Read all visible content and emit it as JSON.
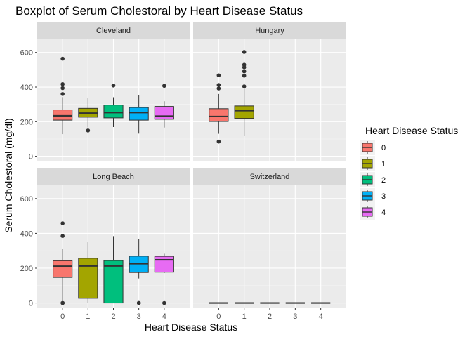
{
  "chart_data": {
    "type": "boxplot",
    "title": "Boxplot of Serum Cholestoral by Heart Disease Status",
    "xlabel": "Heart Disease Status",
    "ylabel": "Serum Cholestoral (mg/dl)",
    "categories": [
      "0",
      "1",
      "2",
      "3",
      "4"
    ],
    "ylim": [
      -30,
      680
    ],
    "yticks": [
      0,
      200,
      400,
      600
    ],
    "legend": {
      "title": "Heart Disease Status",
      "position": "right",
      "entries": [
        "0",
        "1",
        "2",
        "3",
        "4"
      ]
    },
    "colors": [
      "#F8766D",
      "#A3A500",
      "#00BF7D",
      "#00B0F6",
      "#E76BF3"
    ],
    "panels": [
      {
        "name": "Cleveland",
        "boxes": [
          {
            "category": "0",
            "lower": 128,
            "q1": 209,
            "median": 234,
            "q3": 268,
            "upper": 342,
            "outliers": [
              360,
              394,
              417,
              564
            ]
          },
          {
            "category": "1",
            "lower": 167,
            "q1": 226,
            "median": 249,
            "q3": 277,
            "upper": 335,
            "outliers": [
              149
            ]
          },
          {
            "category": "2",
            "lower": 169,
            "q1": 222,
            "median": 253,
            "q3": 296,
            "upper": 341,
            "outliers": [
              409
            ]
          },
          {
            "category": "3",
            "lower": 131,
            "q1": 209,
            "median": 253,
            "q3": 282,
            "upper": 353,
            "outliers": []
          },
          {
            "category": "4",
            "lower": 166,
            "q1": 214,
            "median": 232,
            "q3": 288,
            "upper": 318,
            "outliers": [
              407
            ]
          }
        ]
      },
      {
        "name": "Hungary",
        "boxes": [
          {
            "category": "0",
            "lower": 130,
            "q1": 201,
            "median": 230,
            "q3": 275,
            "upper": 360,
            "outliers": [
              85,
              392,
              412,
              468
            ]
          },
          {
            "category": "1",
            "lower": 117,
            "q1": 219,
            "median": 264,
            "q3": 291,
            "upper": 394,
            "outliers": [
              404,
              466,
              491,
              514,
              529,
              603
            ]
          }
        ]
      },
      {
        "name": "Long Beach",
        "boxes": [
          {
            "category": "0",
            "lower": 0,
            "q1": 147,
            "median": 211,
            "q3": 243,
            "upper": 309,
            "outliers": [
              0,
              0,
              0,
              385,
              458
            ]
          },
          {
            "category": "1",
            "lower": 0,
            "q1": 27,
            "median": 213,
            "q3": 257,
            "upper": 349,
            "outliers": []
          },
          {
            "category": "2",
            "lower": 0,
            "q1": 0,
            "median": 213,
            "q3": 244,
            "upper": 384,
            "outliers": []
          },
          {
            "category": "3",
            "lower": 141,
            "q1": 175,
            "median": 226,
            "q3": 269,
            "upper": 369,
            "outliers": [
              0,
              0
            ]
          },
          {
            "category": "4",
            "lower": 172,
            "q1": 177,
            "median": 248,
            "q3": 268,
            "upper": 283,
            "outliers": [
              0
            ]
          }
        ]
      },
      {
        "name": "Switzerland",
        "boxes": [
          {
            "category": "0",
            "lower": 0,
            "q1": 0,
            "median": 0,
            "q3": 0,
            "upper": 0,
            "outliers": []
          },
          {
            "category": "1",
            "lower": 0,
            "q1": 0,
            "median": 0,
            "q3": 0,
            "upper": 0,
            "outliers": []
          },
          {
            "category": "2",
            "lower": 0,
            "q1": 0,
            "median": 0,
            "q3": 0,
            "upper": 0,
            "outliers": []
          },
          {
            "category": "3",
            "lower": 0,
            "q1": 0,
            "median": 0,
            "q3": 0,
            "upper": 0,
            "outliers": []
          },
          {
            "category": "4",
            "lower": 0,
            "q1": 0,
            "median": 0,
            "q3": 0,
            "upper": 0,
            "outliers": []
          }
        ]
      }
    ]
  }
}
